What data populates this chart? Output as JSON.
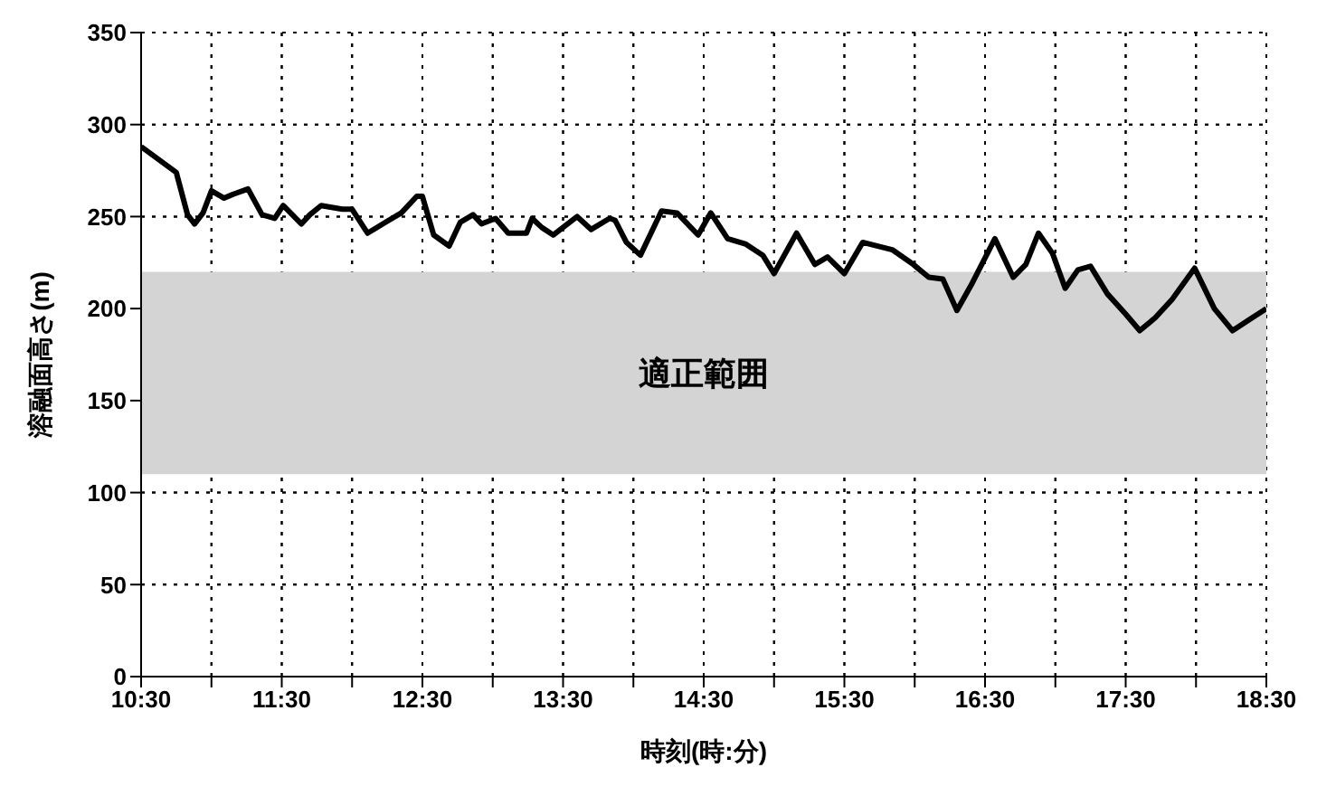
{
  "chart_data": {
    "type": "line",
    "xlabel": "時刻(時:分)",
    "ylabel": "溶融面高さ(m)",
    "x": [
      10.5,
      10.66,
      10.75,
      10.83,
      10.88,
      10.94,
      11.0,
      11.09,
      11.15,
      11.26,
      11.36,
      11.45,
      11.51,
      11.64,
      11.7,
      11.78,
      11.93,
      12.0,
      12.11,
      12.24,
      12.35,
      12.46,
      12.5,
      12.58,
      12.69,
      12.77,
      12.86,
      12.92,
      13.02,
      13.11,
      13.24,
      13.28,
      13.35,
      13.43,
      13.6,
      13.7,
      13.83,
      13.87,
      13.95,
      14.05,
      14.2,
      14.31,
      14.46,
      14.55,
      14.67,
      14.8,
      14.92,
      15.0,
      15.16,
      15.29,
      15.38,
      15.5,
      15.63,
      15.84,
      15.99,
      16.1,
      16.2,
      16.3,
      16.41,
      16.57,
      16.7,
      16.79,
      16.88,
      16.98,
      17.07,
      17.16,
      17.25,
      17.37,
      17.5,
      17.6,
      17.71,
      17.83,
      17.99,
      18.13,
      18.26,
      18.38,
      18.5
    ],
    "series": [
      {
        "color": "#000000",
        "values": [
          288,
          279,
          274,
          251,
          246,
          252,
          264,
          260,
          262,
          265,
          251,
          249,
          256,
          246,
          251,
          256,
          254,
          254,
          241,
          247,
          252,
          261,
          261,
          240,
          234,
          247,
          251,
          246,
          249,
          241,
          241,
          249,
          244,
          240,
          250,
          243,
          249,
          248,
          236,
          229,
          253,
          252,
          240,
          252,
          238,
          235,
          229,
          219,
          241,
          224,
          228,
          219,
          236,
          232,
          224,
          217,
          216,
          199,
          214,
          238,
          217,
          224,
          241,
          230,
          211,
          221,
          223,
          208,
          197,
          188,
          195,
          205,
          222,
          200,
          188,
          194,
          200
        ]
      }
    ],
    "xlim": [
      10.5,
      18.5
    ],
    "xticks": [
      {
        "value": 10.5,
        "label": "10:30"
      },
      {
        "value": 11,
        "label": null
      },
      {
        "value": 11.5,
        "label": "11:30"
      },
      {
        "value": 12,
        "label": null
      },
      {
        "value": 12.5,
        "label": "12:30"
      },
      {
        "value": 13,
        "label": null
      },
      {
        "value": 13.5,
        "label": "13:30"
      },
      {
        "value": 14,
        "label": null
      },
      {
        "value": 14.5,
        "label": "14:30"
      },
      {
        "value": 15,
        "label": null
      },
      {
        "value": 15.5,
        "label": "15:30"
      },
      {
        "value": 16,
        "label": null
      },
      {
        "value": 16.5,
        "label": "16:30"
      },
      {
        "value": 17,
        "label": null
      },
      {
        "value": 17.5,
        "label": "17:30"
      },
      {
        "value": 18,
        "label": null
      },
      {
        "value": 18.5,
        "label": "18:30"
      }
    ],
    "ylim": [
      0,
      350
    ],
    "yticks": [
      0,
      50,
      100,
      150,
      200,
      250,
      300,
      350
    ],
    "bands": [
      {
        "axis": "y",
        "from": 110,
        "to": 220,
        "label": "適正範囲",
        "color": "#d4d4d4"
      }
    ],
    "grid": true,
    "marker": "none",
    "line_style": "solid",
    "legend": false
  }
}
